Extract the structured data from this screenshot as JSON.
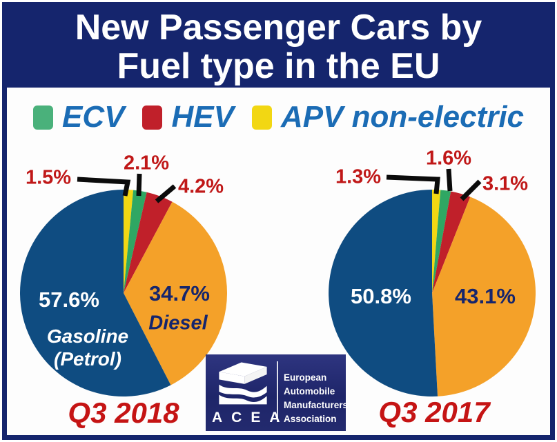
{
  "title": {
    "line1": "New Passenger Cars by",
    "line2": "Fuel type in the EU"
  },
  "legend": {
    "items": [
      {
        "label": "ECV",
        "color": "#4AB17B"
      },
      {
        "label": "HEV",
        "color": "#C0202A"
      },
      {
        "label": "APV non-electric",
        "color": "#F2D713"
      }
    ]
  },
  "chart_data": [
    {
      "type": "pie",
      "title": "Q3 2018",
      "start_angle_deg": 0,
      "direction": "clockwise",
      "slices": [
        {
          "name": "APV non-electric",
          "value": 1.5,
          "pct": "1.5%",
          "color": "#F2D713"
        },
        {
          "name": "ECV",
          "value": 2.1,
          "pct": "2.1%",
          "color": "#2FA763"
        },
        {
          "name": "HEV",
          "value": 4.2,
          "pct": "4.2%",
          "color": "#C0202A"
        },
        {
          "name": "Diesel",
          "value": 34.7,
          "pct": "34.7%",
          "color": "#F4A129"
        },
        {
          "name": "Gasoline (Petrol)",
          "value": 57.6,
          "pct": "57.6%",
          "color": "#0F4C81",
          "name_lines": [
            "Gasoline",
            "(Petrol)"
          ]
        }
      ]
    },
    {
      "type": "pie",
      "title": "Q3 2017",
      "start_angle_deg": 0,
      "direction": "clockwise",
      "slices": [
        {
          "name": "APV non-electric",
          "value": 1.3,
          "pct": "1.3%",
          "color": "#F2D713"
        },
        {
          "name": "ECV",
          "value": 1.6,
          "pct": "1.6%",
          "color": "#2FA763"
        },
        {
          "name": "HEV",
          "value": 3.1,
          "pct": "3.1%",
          "color": "#C0202A"
        },
        {
          "name": "Diesel",
          "value": 43.1,
          "pct": "43.1%",
          "color": "#F4A129"
        },
        {
          "name": "Gasoline (Petrol)",
          "value": 50.8,
          "pct": "50.8%",
          "color": "#0F4C81"
        }
      ]
    }
  ],
  "logo": {
    "acronym": "ACEA",
    "org_lines": [
      "European",
      "Automobile",
      "Manufacturers",
      "Association"
    ]
  },
  "colors": {
    "frame_navy": "#15256D",
    "title_bg": "#15256D",
    "title_text": "#FFFFFF",
    "legend_text_blue": "#1B6CB5",
    "callout_text_red": "#C01818",
    "caption_text_red": "#C51414",
    "pie_blue": "#0F4C81",
    "pie_orange": "#F4A129",
    "pie_red": "#C0202A",
    "pie_green": "#2FA763",
    "pie_yellow": "#F2D713",
    "callout_line_black": "#0B0B0B",
    "logo_bg_navy": "#232A6E"
  }
}
